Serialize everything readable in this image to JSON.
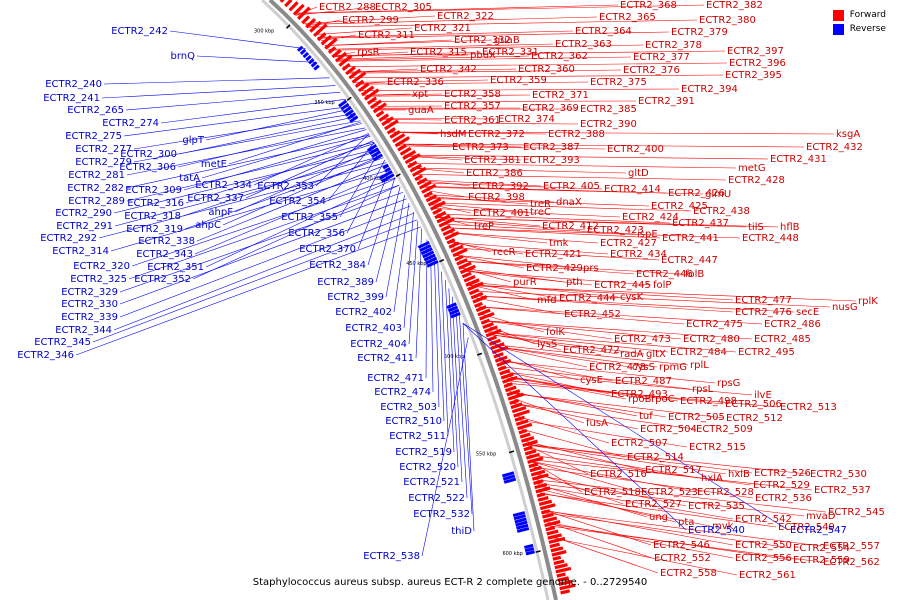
{
  "caption": "Staphylococcus aureus subsp. aureus ECT-R 2 complete genome. - 0..2729540",
  "legend": [
    {
      "label": "Forward",
      "color": "#ff0000"
    },
    {
      "label": "Reverse",
      "color": "#0000ff"
    }
  ],
  "ticks": [
    "300 kbp",
    "350 kbp",
    "400 kbp",
    "450 kbp",
    "500 kbp",
    "550 kbp",
    "600 kbp"
  ],
  "forward_labels": [
    "ECTR2_288",
    "ECTR2_305",
    "ECTR2_299",
    "ECTR2_322",
    "ECTR2_321",
    "ECTR2_311",
    "ECTR2_332",
    "guaB",
    "rpsR",
    "ECTR2_315",
    "ECTR2_331",
    "pbuX",
    "ECTR2_342",
    "xpt",
    "ECTR2_336",
    "guaA",
    "ECTR2_358",
    "ECTR2_357",
    "ECTR2_361",
    "hsdM",
    "ECTR2_372",
    "ECTR2_373",
    "ECTR2_381",
    "ECTR2_386",
    "ECTR2_398",
    "ECTR2_392",
    "ECTR2_401",
    "treP",
    "recR",
    "ECTR2_368",
    "ECTR2_382",
    "ECTR2_365",
    "ECTR2_380",
    "ECTR2_364",
    "ECTR2_379",
    "ECTR2_363",
    "ECTR2_378",
    "ECTR2_362",
    "ECTR2_377",
    "ECTR2_360",
    "ECTR2_376",
    "ECTR2_359",
    "ECTR2_375",
    "ECTR2_371",
    "ECTR2_369",
    "ECTR2_385",
    "ECTR2_374",
    "ECTR2_390",
    "ECTR2_388",
    "ECTR2_387",
    "ECTR2_400",
    "ECTR2_393",
    "gltD",
    "ECTR2_405",
    "treR",
    "dnaX",
    "treC",
    "ECTR2_412",
    "tmk",
    "ECTR2_427",
    "ECTR2_421",
    "ECTR2_434",
    "ECTR2_429",
    "prs",
    "purR",
    "pth",
    "mfd",
    "ECTR2_444",
    "ECTR2_452",
    "folK",
    "lysS",
    "ECTR2_397",
    "ECTR2_396",
    "ECTR2_395",
    "ECTR2_394",
    "ECTR2_391",
    "ksgA",
    "ECTR2_432",
    "ECTR2_431",
    "metG",
    "ECTR2_428",
    "glmU",
    "ECTR2_414",
    "ECTR2_426",
    "ECTR2_425",
    "ECTR2_438",
    "ECTR2_424",
    "ECTR2_437",
    "ECTR2_423",
    "ispE",
    "tilS",
    "hflB",
    "ECTR2_441",
    "ECTR2_448",
    "ECTR2_447",
    "ECTR2_446",
    "folB",
    "ECTR2_445",
    "folP",
    "cysK",
    "ECTR2_477",
    "ECTR2_476",
    "ECTR2_475",
    "nusG",
    "rplK",
    "secE",
    "ECTR2_486",
    "ECTR2_473",
    "ECTR2_480",
    "ECTR2_485",
    "ECTR2_472",
    "radA",
    "gltX",
    "ECTR2_484",
    "ECTR2_495",
    "ECTR2_478",
    "cysS",
    "rpmG",
    "rplL",
    "cysE",
    "ECTR2_487",
    "ECTR2_493",
    "rpsL",
    "rpsG",
    "rpoB",
    "rpoC",
    "ECTR2_498",
    "ilvE",
    "ECTR2_506",
    "ECTR2_513",
    "tuf",
    "ECTR2_505",
    "ECTR2_512",
    "fusA",
    "ECTR2_504",
    "ECTR2_509",
    "ECTR2_507",
    "ECTR2_515",
    "ECTR2_514",
    "ECTR2_516",
    "ECTR2_517",
    "hxlA",
    "hxlB",
    "ECTR2_526",
    "ECTR2_530",
    "ECTR2_529",
    "ECTR2_537",
    "ECTR2_518",
    "ECTR2_523",
    "ECTR2_528",
    "ECTR2_536",
    "ECTR2_527",
    "mvaD",
    "ECTR2_545",
    "ECTR2_535",
    "ung",
    "ECTR2_542",
    "pta",
    "mvk",
    "ECTR2_549",
    "ECTR2_546",
    "ECTR2_550",
    "ECTR2_554",
    "ECTR2_557",
    "ECTR2_552",
    "ECTR2_556",
    "ECTR2_559",
    "ECTR2_562",
    "ECTR2_558",
    "ECTR2_561"
  ],
  "reverse_labels": [
    "ECTR2_242",
    "brnQ",
    "ECTR2_240",
    "ECTR2_241",
    "ECTR2_265",
    "ECTR2_274",
    "ECTR2_275",
    "glpT",
    "ECTR2_277",
    "ECTR2_300",
    "ECTR2_279",
    "ECTR2_306",
    "metE",
    "ECTR2_281",
    "tatA",
    "ECTR2_282",
    "ECTR2_309",
    "ECTR2_334",
    "ECTR2_353",
    "ECTR2_289",
    "ECTR2_316",
    "ECTR2_337",
    "ECTR2_354",
    "ECTR2_290",
    "ECTR2_318",
    "ahpF",
    "ECTR2_355",
    "ECTR2_291",
    "ECTR2_319",
    "ahpC",
    "ECTR2_356",
    "ECTR2_292",
    "ECTR2_338",
    "ECTR2_370",
    "ECTR2_314",
    "ECTR2_343",
    "ECTR2_384",
    "ECTR2_320",
    "ECTR2_351",
    "ECTR2_325",
    "ECTR2_352",
    "ECTR2_389",
    "ECTR2_329",
    "ECTR2_399",
    "ECTR2_330",
    "ECTR2_402",
    "ECTR2_339",
    "ECTR2_403",
    "ECTR2_344",
    "ECTR2_404",
    "ECTR2_345",
    "ECTR2_411",
    "ECTR2_346",
    "ECTR2_471",
    "ECTR2_474",
    "ECTR2_503",
    "ECTR2_510",
    "ECTR2_511",
    "ECTR2_519",
    "ECTR2_520",
    "ECTR2_521",
    "ECTR2_522",
    "ECTR2_532",
    "thiD",
    "ECTR2_538",
    "ECTR2_540",
    "ECTR2_547"
  ]
}
